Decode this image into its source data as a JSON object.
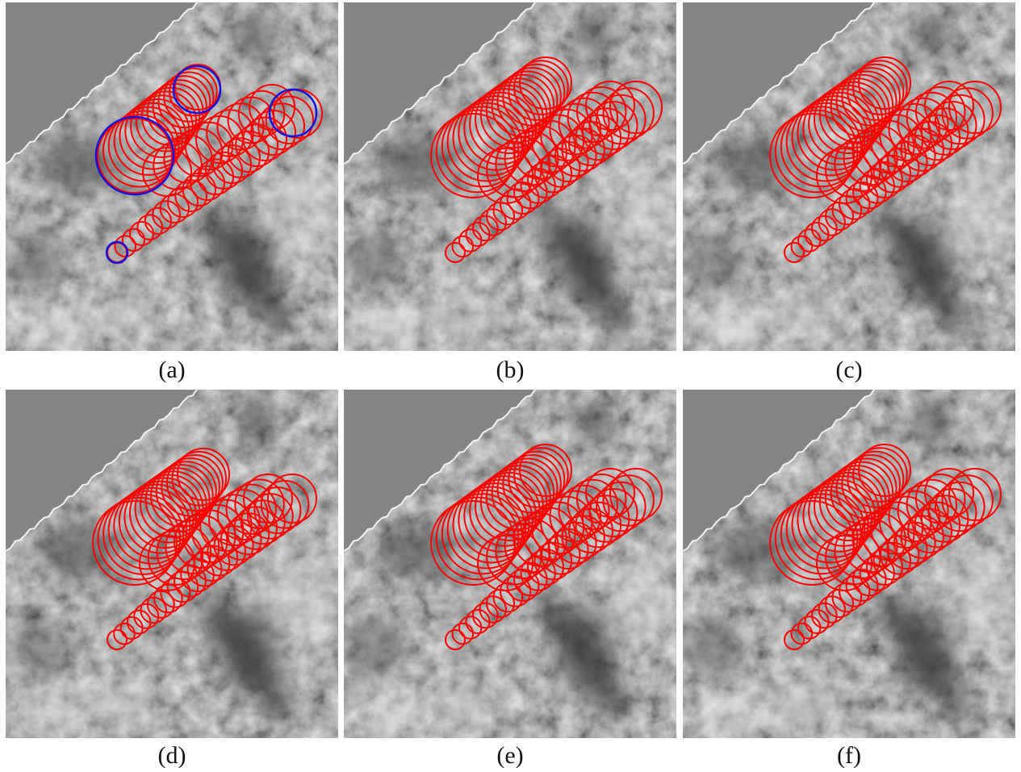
{
  "figure": {
    "panels": [
      {
        "label": "(a)",
        "bluecircles": true,
        "variant": 0
      },
      {
        "label": "(b)",
        "bluecircles": false,
        "variant": 1
      },
      {
        "label": "(c)",
        "bluecircles": false,
        "variant": 1
      },
      {
        "label": "(d)",
        "bluecircles": false,
        "variant": 2
      },
      {
        "label": "(e)",
        "bluecircles": false,
        "variant": 1
      },
      {
        "label": "(f)",
        "bluecircles": false,
        "variant": 1
      }
    ]
  },
  "colors": {
    "tube": "#ff0000",
    "endpoint": "#1010e0",
    "background_gray": "#858585"
  }
}
